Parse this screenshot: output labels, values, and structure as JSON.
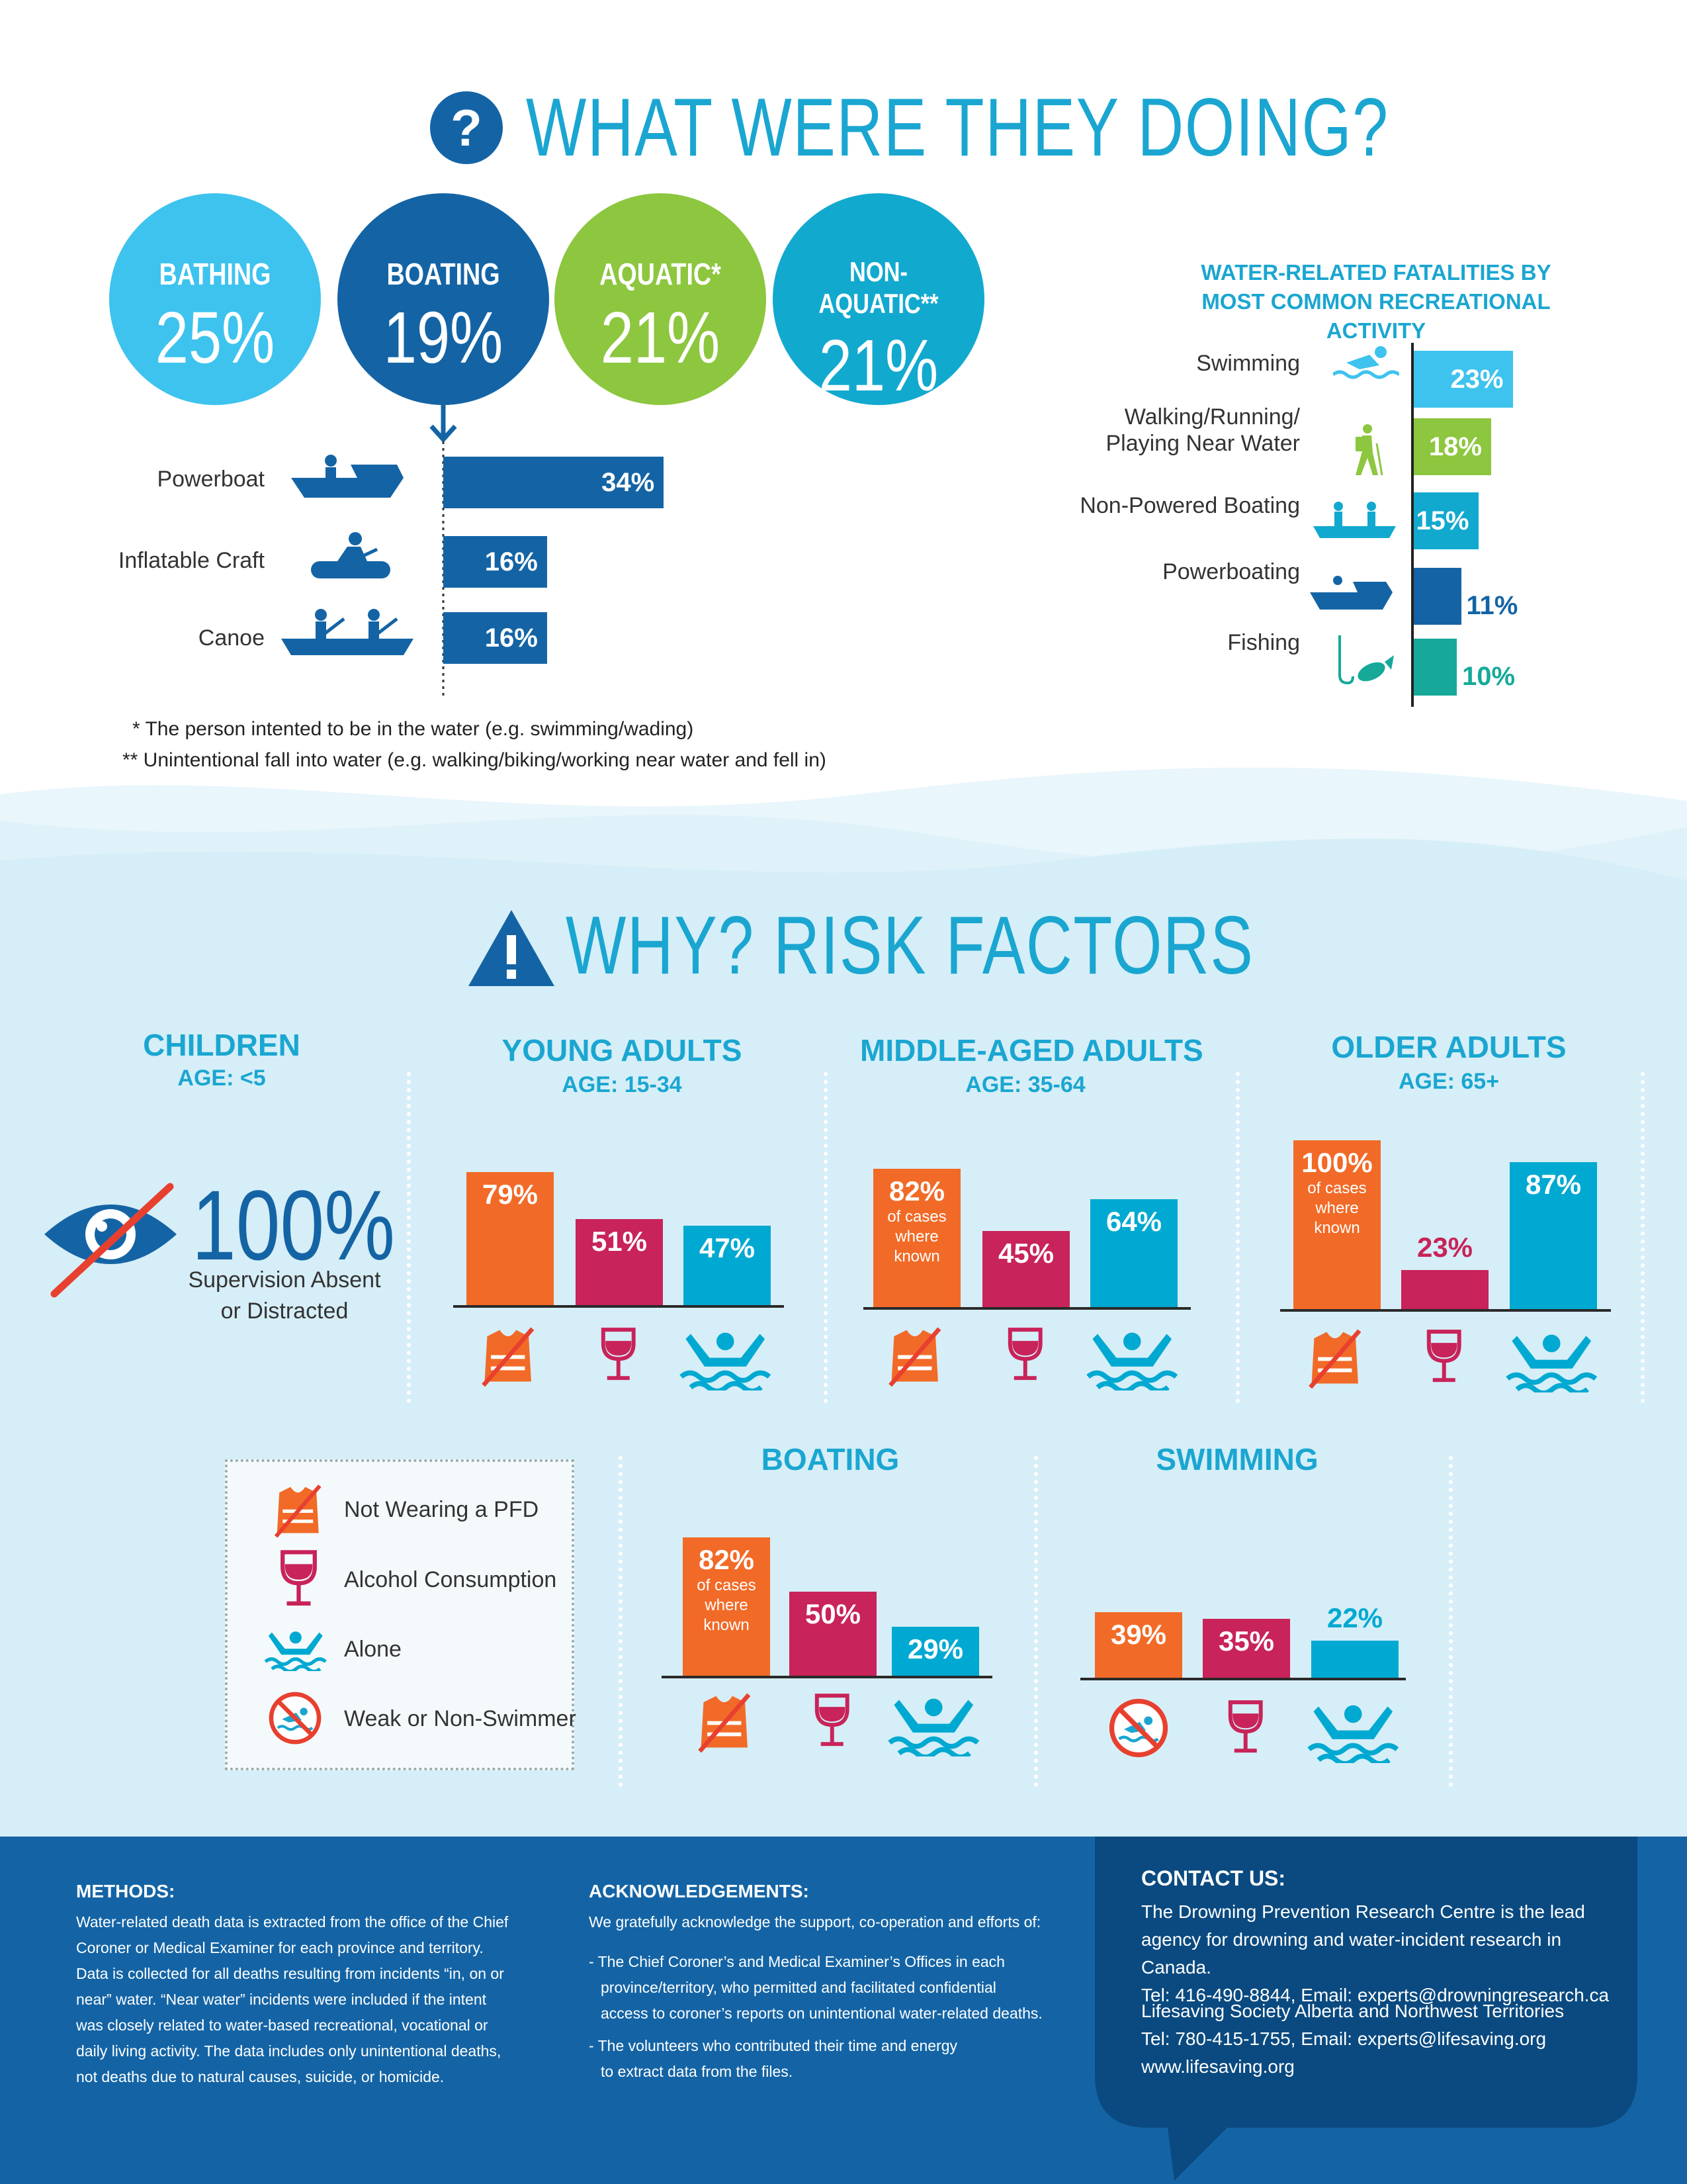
{
  "section1": {
    "title": "WHAT WERE THEY DOING?",
    "circles": [
      {
        "label": "BATHING",
        "value": "25%",
        "color": "#3ec3ee"
      },
      {
        "label": "BOATING",
        "value": "19%",
        "color": "#1464a5"
      },
      {
        "label": "AQUATIC*",
        "value": "21%",
        "color": "#8dc63f"
      },
      {
        "label": "NON-AQUATIC**",
        "value": "21%",
        "color": "#12a9cf"
      }
    ],
    "footnotes": [
      "* The person intented to be in the water (e.g. swimming/wading)",
      "** Unintentional fall into water (e.g. walking/biking/working near water and fell in)"
    ]
  },
  "chart_data": [
    {
      "type": "bar",
      "orientation": "horizontal",
      "categories": [
        "Powerboat",
        "Inflatable Craft",
        "Canoe"
      ],
      "values": [
        34,
        16,
        16
      ],
      "labels": [
        "34%",
        "16%",
        "16%"
      ]
    },
    {
      "type": "bar",
      "orientation": "horizontal",
      "title": "WATER-RELATED FATALITIES BY MOST COMMON RECREATIONAL ACTIVITY",
      "categories": [
        "Swimming",
        "Walking/Running/ Playing Near Water",
        "Non-Powered Boating",
        "Powerboating",
        "Fishing"
      ],
      "values": [
        23,
        18,
        15,
        11,
        10
      ],
      "labels": [
        "23%",
        "18%",
        "15%",
        "11%",
        "10%"
      ],
      "colors": [
        "#3ec3ee",
        "#8dc63f",
        "#12a9cf",
        "#1464a5",
        "#16a99a"
      ]
    },
    {
      "type": "bar",
      "title": "YOUNG ADULTS",
      "subtitle": "AGE: 15-34",
      "categories": [
        "Not Wearing a PFD",
        "Alcohol Consumption",
        "Alone"
      ],
      "values": [
        79,
        51,
        47
      ],
      "labels": [
        "79%",
        "51%",
        "47%"
      ]
    },
    {
      "type": "bar",
      "title": "MIDDLE-AGED ADULTS",
      "subtitle": "AGE: 35-64",
      "categories": [
        "Not Wearing a PFD",
        "Alcohol Consumption",
        "Alone"
      ],
      "values": [
        82,
        45,
        64
      ],
      "labels": [
        "82%",
        "45%",
        "64%"
      ],
      "note": "of cases where known"
    },
    {
      "type": "bar",
      "title": "OLDER ADULTS",
      "subtitle": "AGE: 65+",
      "categories": [
        "Not Wearing a PFD",
        "Alcohol Consumption",
        "Alone"
      ],
      "values": [
        100,
        23,
        87
      ],
      "labels": [
        "100%",
        "23%",
        "87%"
      ],
      "note": "of cases where known"
    },
    {
      "type": "bar",
      "title": "BOATING",
      "categories": [
        "Not Wearing a PFD",
        "Alcohol Consumption",
        "Alone"
      ],
      "values": [
        82,
        50,
        29
      ],
      "labels": [
        "82%",
        "50%",
        "29%"
      ],
      "note": "of cases where known"
    },
    {
      "type": "bar",
      "title": "SWIMMING",
      "categories": [
        "Weak or Non-Swimmer",
        "Alcohol Consumption",
        "Alone"
      ],
      "values": [
        39,
        35,
        22
      ],
      "labels": [
        "39%",
        "35%",
        "22%"
      ]
    }
  ],
  "section2": {
    "title": "WHY? RISK FACTORS",
    "children": {
      "title": "CHILDREN",
      "subtitle": "AGE: <5",
      "value": "100%",
      "caption1": "Supervision Absent",
      "caption2": "or Distracted"
    },
    "legend": [
      "Not Wearing a PFD",
      "Alcohol Consumption",
      "Alone",
      "Weak or Non-Swimmer"
    ],
    "colors": {
      "pfd": "#f26a27",
      "alcohol": "#c8235a",
      "alone": "#00a9d1"
    }
  },
  "footer": {
    "methods_title": "METHODS:",
    "methods_lines": [
      "Water-related death data is extracted from the office of the Chief",
      "Coroner or Medical Examiner for each province and territory.",
      "Data is collected for all deaths resulting from incidents “in, on or",
      "near” water. “Near water” incidents were included if the intent",
      "was closely related to water-based recreational, vocational or",
      "daily living activity. The data includes only unintentional deaths,",
      "not deaths due to natural causes, suicide, or homicide."
    ],
    "ack_title": "ACKNOWLEDGEMENTS:",
    "ack_intro": "We gratefully acknowledge the support, co-operation and efforts of:",
    "ack_lines": [
      "- The Chief Coroner’s and Medical Examiner’s Offices in each",
      "province/territory, who permitted and facilitated confidential",
      "access to coroner’s reports on unintentional water-related deaths.",
      "- The volunteers who contributed their time and energy",
      "to extract data from the files."
    ],
    "contact_title": "CONTACT US:",
    "contact_lines": [
      "The Drowning Prevention Research Centre is the lead",
      "agency for drowning and water-incident research in Canada.",
      "Tel: 416-490-8844, Email: experts@drowningresearch.ca"
    ],
    "contact_lines2": [
      "Lifesaving Society Alberta and Northwest Territories",
      "Tel: 780-415-1755, Email: experts@lifesaving.org",
      "www.lifesaving.org"
    ]
  }
}
